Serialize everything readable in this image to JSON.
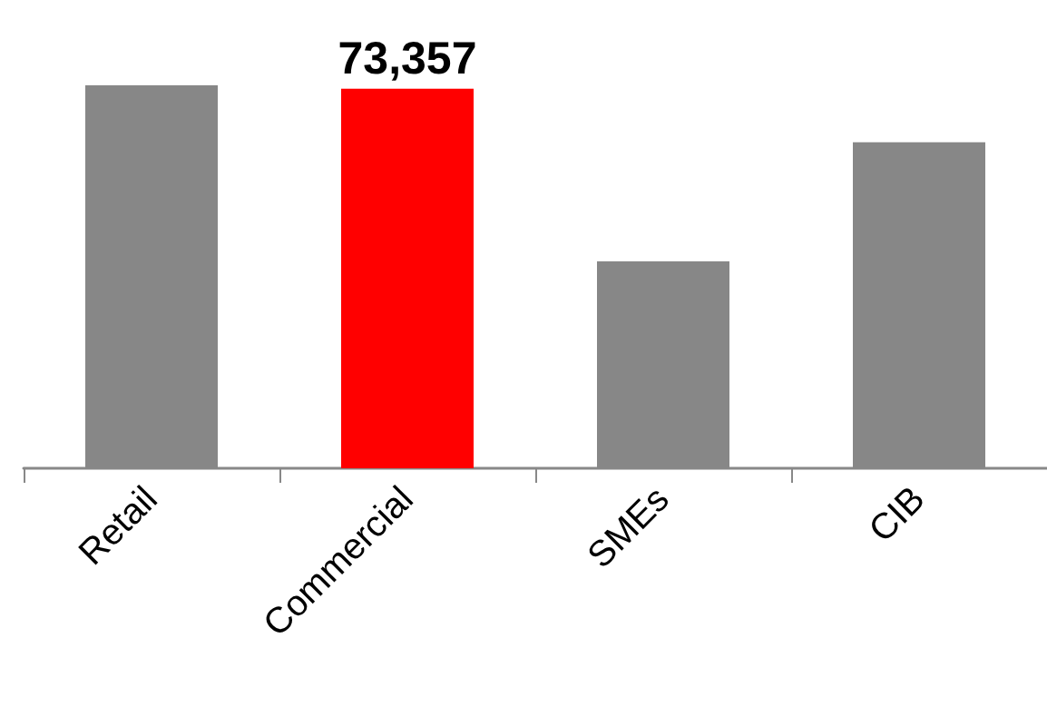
{
  "chart_data": {
    "type": "bar",
    "categories": [
      "Retail",
      "Commercial",
      "SMEs",
      "CIB"
    ],
    "values": [
      74000,
      73357,
      40000,
      63000
    ],
    "colors": [
      "#878787",
      "#ff0000",
      "#878787",
      "#878787"
    ],
    "value_labels": [
      null,
      "73,357",
      null,
      null
    ]
  }
}
